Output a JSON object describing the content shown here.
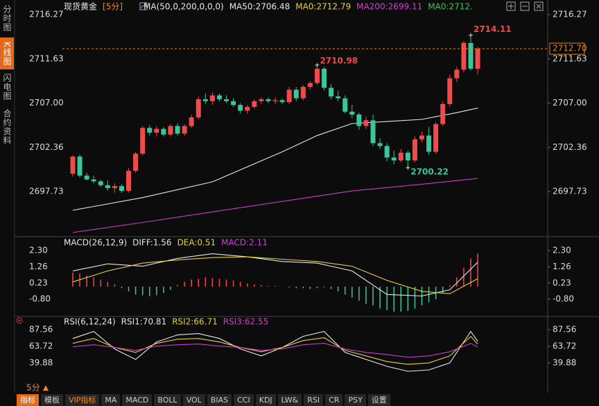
{
  "sidebar": [
    "分时图",
    "K线图",
    "闪电图",
    "合约资料"
  ],
  "period": "5分",
  "toolbar_tabs": [
    "指标",
    "模板",
    "VIP指标",
    "MA",
    "MACD",
    "BOLL",
    "VOL",
    "BIAS",
    "CCI",
    "KDJ",
    "LW&",
    "RSI",
    "CR",
    "PSY",
    "设置"
  ],
  "chart_data": [
    {
      "type": "candlestick",
      "legend": [
        {
          "text": "现货黄金",
          "color": "#e8e8e8"
        },
        {
          "text": "[5分]",
          "color": "#f08a24"
        },
        {
          "text": "MA(50,0,200,0,0,0)",
          "color": "#e8e8e8"
        },
        {
          "text": "MA50:2706.48",
          "color": "#e8e8e8"
        },
        {
          "text": "MA0:2712.79",
          "color": "#e6d23c"
        },
        {
          "text": "MA200:2699.11",
          "color": "#d040d0"
        },
        {
          "text": "MA0:2712.",
          "color": "#3cc850"
        }
      ],
      "up_color": "#f04a4a",
      "down_color": "#3cc49a",
      "open": [
        2699.6,
        2701.4,
        2699.4,
        2699.0,
        2698.8,
        2698.4,
        2698.1,
        2698.3,
        2697.8,
        2699.9,
        2701.7,
        2704.4,
        2703.9,
        2704.3,
        2703.7,
        2704.6,
        2703.8,
        2704.6,
        2705.5,
        2707.4,
        2707.2,
        2707.8,
        2707.4,
        2707.2,
        2706.8,
        2706.2,
        2706.6,
        2707.2,
        2707.4,
        2707.2,
        2707.3,
        2707.1,
        2708.4,
        2707.5,
        2708.7,
        2709.1,
        2710.6,
        2708.6,
        2707.7,
        2707.5,
        2706.1,
        2705.8,
        2704.6,
        2705.2,
        2702.8,
        2702.5,
        2701.3,
        2701.0,
        2701.8,
        2701.0,
        2703.2,
        2703.6,
        2701.9,
        2704.8,
        2706.9,
        2709.6,
        2710.5,
        2713.3,
        2710.6
      ],
      "high": [
        2701.5,
        2701.6,
        2699.7,
        2699.4,
        2699.0,
        2698.9,
        2698.6,
        2698.5,
        2700.2,
        2701.9,
        2704.6,
        2704.7,
        2704.6,
        2704.5,
        2704.8,
        2704.9,
        2704.8,
        2705.8,
        2707.7,
        2708.0,
        2708.1,
        2708.0,
        2707.8,
        2707.5,
        2707.0,
        2706.8,
        2707.4,
        2707.6,
        2707.6,
        2707.6,
        2707.5,
        2708.7,
        2708.7,
        2708.9,
        2709.3,
        2710.98,
        2710.8,
        2709.0,
        2708.3,
        2707.8,
        2706.8,
        2706.0,
        2705.6,
        2705.8,
        2703.3,
        2702.8,
        2702.0,
        2702.2,
        2702.0,
        2703.5,
        2704.0,
        2704.5,
        2705.0,
        2707.2,
        2710.0,
        2710.8,
        2713.5,
        2714.11,
        2712.9
      ],
      "low": [
        2699.3,
        2699.2,
        2698.9,
        2698.6,
        2698.2,
        2697.8,
        2697.6,
        2697.6,
        2697.6,
        2699.7,
        2701.5,
        2703.6,
        2703.5,
        2703.5,
        2703.5,
        2703.6,
        2703.6,
        2704.4,
        2705.3,
        2706.9,
        2706.8,
        2707.2,
        2707.0,
        2706.6,
        2705.9,
        2705.9,
        2706.4,
        2706.9,
        2707.0,
        2706.9,
        2706.9,
        2706.9,
        2707.2,
        2707.3,
        2708.4,
        2708.9,
        2708.3,
        2707.4,
        2707.2,
        2705.9,
        2705.4,
        2704.2,
        2704.3,
        2702.5,
        2702.2,
        2700.9,
        2700.6,
        2700.8,
        2700.22,
        2700.8,
        2702.9,
        2701.6,
        2701.7,
        2704.6,
        2706.6,
        2709.2,
        2710.2,
        2710.4,
        2710.0
      ],
      "close": [
        2701.4,
        2699.4,
        2699.0,
        2698.8,
        2698.4,
        2698.1,
        2698.3,
        2697.8,
        2699.9,
        2701.7,
        2704.4,
        2703.9,
        2704.3,
        2703.7,
        2704.6,
        2703.8,
        2704.6,
        2705.5,
        2707.4,
        2707.2,
        2707.8,
        2707.4,
        2707.2,
        2706.8,
        2706.2,
        2706.6,
        2707.2,
        2707.4,
        2707.2,
        2707.3,
        2707.1,
        2708.4,
        2707.5,
        2708.7,
        2709.1,
        2710.6,
        2708.6,
        2707.7,
        2707.5,
        2706.1,
        2705.8,
        2704.6,
        2705.2,
        2702.8,
        2702.5,
        2701.3,
        2701.0,
        2701.8,
        2701.0,
        2703.2,
        2703.6,
        2701.9,
        2704.8,
        2706.9,
        2709.6,
        2710.5,
        2713.3,
        2710.6,
        2712.7
      ],
      "series": [
        {
          "color": "#e8e8e8",
          "x": [
            0,
            10,
            20,
            30,
            35,
            40,
            45,
            50,
            55,
            58
          ],
          "values": [
            2695.77,
            2697.1,
            2698.75,
            2701.9,
            2703.6,
            2704.86,
            2705.07,
            2705.29,
            2706.0,
            2706.48
          ]
        },
        {
          "color": "#c83cc8",
          "x": [
            0,
            10,
            20,
            30,
            40,
            50,
            58
          ],
          "values": [
            2693.44,
            2694.5,
            2695.6,
            2696.7,
            2697.8,
            2698.5,
            2699.11
          ]
        }
      ],
      "ylim": [
        2693.08,
        2717.07
      ],
      "yticks": [
        2716.27,
        2711.63,
        {
          "value": 2707,
          "label": "2707.00"
        },
        2702.36,
        2697.73
      ],
      "last_price": {
        "value": 2712.7,
        "label": "2712.70"
      },
      "annotations": [
        "2714.11",
        "2710.98",
        "2700.22"
      ]
    },
    {
      "type": "macd",
      "legend": [
        {
          "text": "MACD(26,12,9)",
          "color": "#e8e8e8"
        },
        {
          "text": "DIFF:1.56",
          "color": "#e8e8e8"
        },
        {
          "text": "DEA:0.51",
          "color": "#e6d23c"
        },
        {
          "text": "MACD:2.11",
          "color": "#d040d0"
        }
      ],
      "up_color": "#f04a4a",
      "down_color": "#3cc49a",
      "values": [
        0.9,
        0.85,
        0.7,
        0.6,
        0.45,
        0.3,
        0.15,
        -0.1,
        -0.3,
        -0.5,
        -0.55,
        -0.6,
        -0.55,
        -0.4,
        -0.2,
        0.1,
        0.3,
        0.45,
        0.5,
        0.6,
        0.55,
        0.5,
        0.45,
        0.4,
        0.3,
        0.2,
        0.15,
        0.1,
        0.05,
        0.05,
        0.02,
        -0.05,
        -0.1,
        -0.1,
        -0.15,
        -0.1,
        -0.05,
        -0.15,
        -0.3,
        -0.5,
        -0.7,
        -0.9,
        -1.1,
        -1.2,
        -1.4,
        -1.5,
        -1.6,
        -1.6,
        -1.55,
        -1.4,
        -1.2,
        -1.0,
        -0.8,
        -0.4,
        0.1,
        0.6,
        1.2,
        1.8,
        2.11
      ],
      "series": [
        {
          "color": "#e8e8e8",
          "x": [
            0,
            5,
            10,
            15,
            20,
            25,
            30,
            35,
            40,
            45,
            50,
            54,
            58
          ],
          "values": [
            1.0,
            1.45,
            1.3,
            1.8,
            2.1,
            1.9,
            1.6,
            1.5,
            1.0,
            -0.5,
            -0.6,
            -0.2,
            1.56
          ]
        },
        {
          "color": "#e6d23c",
          "x": [
            0,
            5,
            10,
            15,
            20,
            25,
            30,
            35,
            40,
            45,
            50,
            54,
            58
          ],
          "values": [
            0.3,
            1.0,
            1.5,
            1.7,
            1.85,
            1.9,
            1.75,
            1.6,
            1.3,
            0.4,
            -0.3,
            -0.45,
            0.51
          ]
        }
      ],
      "ylim": [
        -1.86,
        2.7
      ],
      "yticks": [
        {
          "value": 2.3,
          "label": "2.30"
        },
        1.26,
        0.23,
        {
          "value": -0.8,
          "label": "-0.80"
        }
      ]
    },
    {
      "type": "rsi",
      "legend": [
        {
          "text": "RSI(6,12,24)",
          "color": "#e8e8e8"
        },
        {
          "text": "RSI1:70.81",
          "color": "#e8e8e8"
        },
        {
          "text": "RSI2:66.71",
          "color": "#e6d23c"
        },
        {
          "text": "RSI3:62.55",
          "color": "#d040d0"
        }
      ],
      "series": [
        {
          "color": "#e8e8e8",
          "x": [
            0,
            3,
            6,
            9,
            12,
            15,
            18,
            21,
            24,
            27,
            30,
            33,
            36,
            39,
            42,
            45,
            48,
            51,
            54,
            57,
            58
          ],
          "values": [
            75,
            85,
            60,
            45,
            70,
            80,
            82,
            75,
            60,
            50,
            62,
            78,
            85,
            55,
            45,
            35,
            28,
            30,
            40,
            85,
            70.81
          ]
        },
        {
          "color": "#e6d23c",
          "x": [
            0,
            3,
            6,
            9,
            12,
            15,
            18,
            21,
            24,
            27,
            30,
            33,
            36,
            39,
            42,
            45,
            48,
            51,
            54,
            57,
            58
          ],
          "values": [
            68,
            75,
            62,
            55,
            68,
            74,
            75,
            70,
            62,
            56,
            62,
            72,
            76,
            58,
            50,
            42,
            38,
            40,
            50,
            78,
            66.71
          ]
        },
        {
          "color": "#c83cc8",
          "x": [
            0,
            3,
            6,
            9,
            12,
            15,
            18,
            21,
            24,
            27,
            30,
            33,
            36,
            39,
            42,
            45,
            48,
            51,
            54,
            57,
            58
          ],
          "values": [
            63,
            66,
            62,
            58,
            64,
            66,
            67,
            64,
            62,
            58,
            60,
            66,
            68,
            60,
            55,
            52,
            48,
            50,
            56,
            68,
            62.55
          ]
        }
      ],
      "ylim": [
        8.1,
        97.5
      ],
      "yticks": [
        87.56,
        63.72,
        39.88
      ]
    }
  ]
}
